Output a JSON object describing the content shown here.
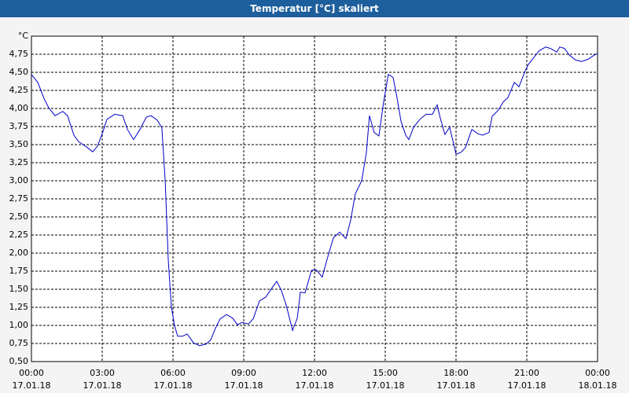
{
  "chart_data": {
    "type": "line",
    "title": "Temperatur [°C] skaliert",
    "y_unit": "°C",
    "xlim": [
      0,
      24
    ],
    "ylim": [
      0.5,
      5.0
    ],
    "xticks": [
      {
        "value": 0,
        "label": "00:00"
      },
      {
        "value": 3,
        "label": "03:00"
      },
      {
        "value": 6,
        "label": "06:00"
      },
      {
        "value": 9,
        "label": "09:00"
      },
      {
        "value": 12,
        "label": "12:00"
      },
      {
        "value": 15,
        "label": "15:00"
      },
      {
        "value": 18,
        "label": "18:00"
      },
      {
        "value": 21,
        "label": "21:00"
      },
      {
        "value": 24,
        "label": "00:00"
      }
    ],
    "xtick_dates": [
      "17.01.18",
      "17.01.18",
      "17.01.18",
      "17.01.18",
      "17.01.18",
      "17.01.18",
      "17.01.18",
      "17.01.18",
      "18.01.18"
    ],
    "yticks": [
      {
        "value": 0.5,
        "label": "0,50"
      },
      {
        "value": 0.75,
        "label": "0,75"
      },
      {
        "value": 1.0,
        "label": "1,00"
      },
      {
        "value": 1.25,
        "label": "1,25"
      },
      {
        "value": 1.5,
        "label": "1,50"
      },
      {
        "value": 1.75,
        "label": "1,75"
      },
      {
        "value": 2.0,
        "label": "2,00"
      },
      {
        "value": 2.25,
        "label": "2,25"
      },
      {
        "value": 2.5,
        "label": "2,50"
      },
      {
        "value": 2.75,
        "label": "2,75"
      },
      {
        "value": 3.0,
        "label": "3,00"
      },
      {
        "value": 3.25,
        "label": "3,25"
      },
      {
        "value": 3.5,
        "label": "3,50"
      },
      {
        "value": 3.75,
        "label": "3,75"
      },
      {
        "value": 4.0,
        "label": "4,00"
      },
      {
        "value": 4.25,
        "label": "4,25"
      },
      {
        "value": 4.5,
        "label": "4,50"
      },
      {
        "value": 4.75,
        "label": "4,75"
      }
    ],
    "grid": true,
    "color": "#0000c8",
    "x": [
      0,
      0.27,
      0.53,
      0.73,
      1.0,
      1.33,
      1.53,
      1.8,
      2.0,
      2.33,
      2.6,
      2.8,
      3.0,
      3.2,
      3.53,
      3.87,
      4.07,
      4.33,
      4.6,
      4.87,
      5.07,
      5.33,
      5.53,
      5.67,
      5.8,
      5.93,
      6.07,
      6.2,
      6.4,
      6.6,
      6.87,
      7.13,
      7.4,
      7.6,
      7.8,
      8.0,
      8.27,
      8.53,
      8.73,
      8.93,
      9.2,
      9.4,
      9.67,
      9.93,
      10.2,
      10.4,
      10.6,
      10.8,
      11.07,
      11.27,
      11.4,
      11.6,
      11.87,
      12.07,
      12.33,
      12.53,
      12.8,
      13.07,
      13.33,
      13.53,
      13.73,
      14.0,
      14.2,
      14.33,
      14.53,
      14.73,
      14.93,
      15.13,
      15.33,
      15.47,
      15.67,
      15.87,
      16.0,
      16.2,
      16.47,
      16.73,
      17.0,
      17.2,
      17.33,
      17.53,
      17.73,
      18.0,
      18.2,
      18.4,
      18.67,
      18.93,
      19.13,
      19.4,
      19.53,
      19.8,
      20.0,
      20.2,
      20.47,
      20.67,
      20.93,
      21.07,
      21.33,
      21.53,
      21.8,
      22.0,
      22.27,
      22.4,
      22.6,
      22.8,
      23.07,
      23.33,
      23.6,
      23.87,
      24.0
    ],
    "values": [
      4.47,
      4.36,
      4.14,
      4.01,
      3.9,
      3.96,
      3.9,
      3.63,
      3.54,
      3.47,
      3.4,
      3.48,
      3.65,
      3.85,
      3.92,
      3.9,
      3.71,
      3.57,
      3.71,
      3.88,
      3.9,
      3.84,
      3.73,
      3.0,
      1.91,
      1.26,
      0.99,
      0.85,
      0.85,
      0.88,
      0.76,
      0.72,
      0.74,
      0.8,
      0.96,
      1.09,
      1.15,
      1.1,
      1.01,
      1.04,
      1.02,
      1.09,
      1.34,
      1.39,
      1.52,
      1.61,
      1.48,
      1.28,
      0.93,
      1.1,
      1.46,
      1.45,
      1.76,
      1.77,
      1.67,
      1.91,
      2.21,
      2.29,
      2.2,
      2.45,
      2.82,
      3.0,
      3.39,
      3.9,
      3.67,
      3.62,
      4.09,
      4.47,
      4.43,
      4.2,
      3.82,
      3.63,
      3.57,
      3.74,
      3.85,
      3.92,
      3.92,
      4.05,
      3.87,
      3.64,
      3.74,
      3.37,
      3.39,
      3.46,
      3.71,
      3.65,
      3.63,
      3.67,
      3.89,
      3.98,
      4.09,
      4.15,
      4.36,
      4.3,
      4.52,
      4.61,
      4.72,
      4.8,
      4.85,
      4.83,
      4.78,
      4.85,
      4.83,
      4.74,
      4.67,
      4.65,
      4.68,
      4.74,
      4.76
    ]
  }
}
